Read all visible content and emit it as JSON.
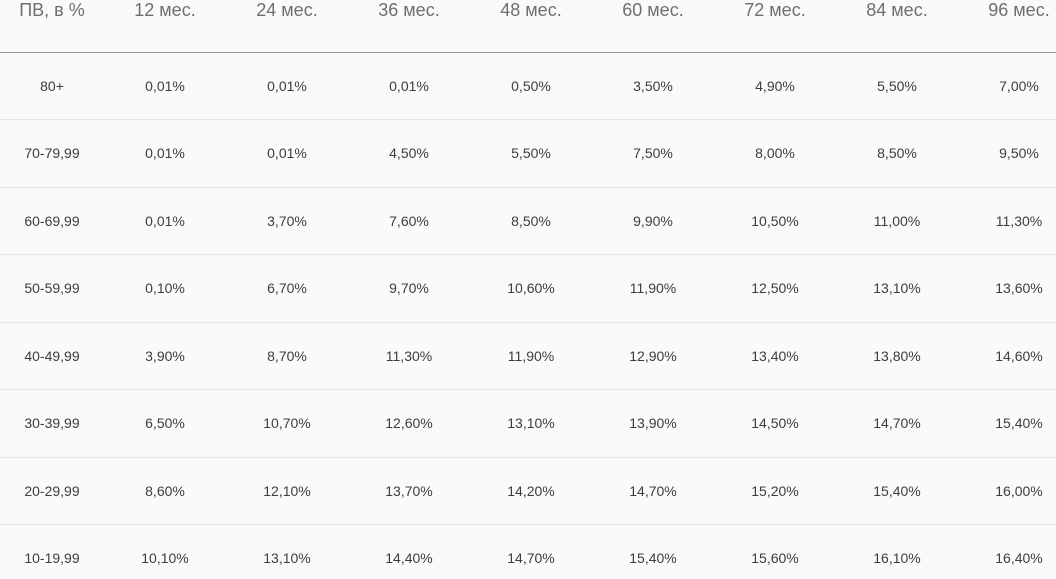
{
  "chart_data": {
    "type": "table",
    "title": "",
    "corner_header": "ПВ, в %",
    "columns": [
      "ПВ, в %",
      "12 мес.",
      "24 мес.",
      "36 мес.",
      "48 мес.",
      "60 мес.",
      "72 мес.",
      "84 мес.",
      "96 мес."
    ],
    "rows": [
      {
        "label": "80+",
        "values": [
          "0,01%",
          "0,01%",
          "0,01%",
          "0,50%",
          "3,50%",
          "4,90%",
          "5,50%",
          "7,00%"
        ]
      },
      {
        "label": "70-79,99",
        "values": [
          "0,01%",
          "0,01%",
          "4,50%",
          "5,50%",
          "7,50%",
          "8,00%",
          "8,50%",
          "9,50%"
        ]
      },
      {
        "label": "60-69,99",
        "values": [
          "0,01%",
          "3,70%",
          "7,60%",
          "8,50%",
          "9,90%",
          "10,50%",
          "11,00%",
          "11,30%"
        ]
      },
      {
        "label": "50-59,99",
        "values": [
          "0,10%",
          "6,70%",
          "9,70%",
          "10,60%",
          "11,90%",
          "12,50%",
          "13,10%",
          "13,60%"
        ]
      },
      {
        "label": "40-49,99",
        "values": [
          "3,90%",
          "8,70%",
          "11,30%",
          "11,90%",
          "12,90%",
          "13,40%",
          "13,80%",
          "14,60%"
        ]
      },
      {
        "label": "30-39,99",
        "values": [
          "6,50%",
          "10,70%",
          "12,60%",
          "13,10%",
          "13,90%",
          "14,50%",
          "14,70%",
          "15,40%"
        ]
      },
      {
        "label": "20-29,99",
        "values": [
          "8,60%",
          "12,10%",
          "13,70%",
          "14,20%",
          "14,70%",
          "15,20%",
          "15,40%",
          "16,00%"
        ]
      },
      {
        "label": "10-19,99",
        "values": [
          "10,10%",
          "13,10%",
          "14,40%",
          "14,70%",
          "15,40%",
          "15,60%",
          "16,10%",
          "16,40%"
        ]
      }
    ],
    "layout": {
      "grid": "horizontal-rules-only",
      "header_rule": true,
      "alignment": "center"
    },
    "colors": {
      "background": "#fafafa",
      "header_text": "#6e6e6e",
      "body_text": "#3d3d3d",
      "header_rule": "#9a9a9a",
      "row_rule": "#e6e6e6"
    }
  }
}
